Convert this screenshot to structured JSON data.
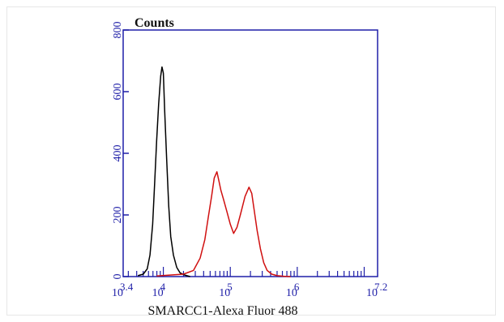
{
  "chart_data": {
    "type": "line",
    "title": "Counts",
    "xlabel": "SMARCC1-Alexa Fluor 488",
    "ylabel": "",
    "x_scale": "log10",
    "xlim": [
      3.4,
      7.2
    ],
    "ylim": [
      0,
      800
    ],
    "y_ticks": [
      "0",
      "200",
      "400",
      "600",
      "800"
    ],
    "x_tick_labels": [
      {
        "base": "10",
        "exp": "3.4",
        "value": 3.4
      },
      {
        "base": "10",
        "exp": "4",
        "value": 4
      },
      {
        "base": "10",
        "exp": "5",
        "value": 5
      },
      {
        "base": "10",
        "exp": "6",
        "value": 6
      },
      {
        "base": "10",
        "exp": "7.2",
        "value": 7.2
      }
    ],
    "grid": false,
    "colors": {
      "axes": "#1f1fa8",
      "black_series": "#000000",
      "red_series": "#d01010"
    },
    "series": [
      {
        "color": "#000000",
        "x": [
          3.62,
          3.7,
          3.76,
          3.8,
          3.84,
          3.87,
          3.9,
          3.93,
          3.96,
          3.98,
          4.0,
          4.02,
          4.05,
          4.08,
          4.11,
          4.15,
          4.2,
          4.25,
          4.32,
          4.4
        ],
        "values": [
          3,
          8,
          25,
          70,
          170,
          300,
          440,
          560,
          650,
          680,
          660,
          540,
          380,
          230,
          130,
          70,
          30,
          12,
          5,
          0
        ]
      },
      {
        "color": "#d01010",
        "x": [
          3.9,
          4.1,
          4.3,
          4.45,
          4.55,
          4.62,
          4.67,
          4.72,
          4.76,
          4.8,
          4.83,
          4.86,
          4.9,
          4.95,
          5.0,
          5.05,
          5.1,
          5.15,
          5.22,
          5.28,
          5.32,
          5.36,
          5.4,
          5.45,
          5.5,
          5.55,
          5.62,
          5.7,
          5.8,
          5.9
        ],
        "values": [
          2,
          5,
          8,
          20,
          60,
          120,
          190,
          260,
          320,
          340,
          310,
          280,
          250,
          210,
          170,
          140,
          160,
          200,
          260,
          290,
          270,
          210,
          150,
          90,
          45,
          20,
          8,
          3,
          1,
          0
        ]
      }
    ]
  }
}
